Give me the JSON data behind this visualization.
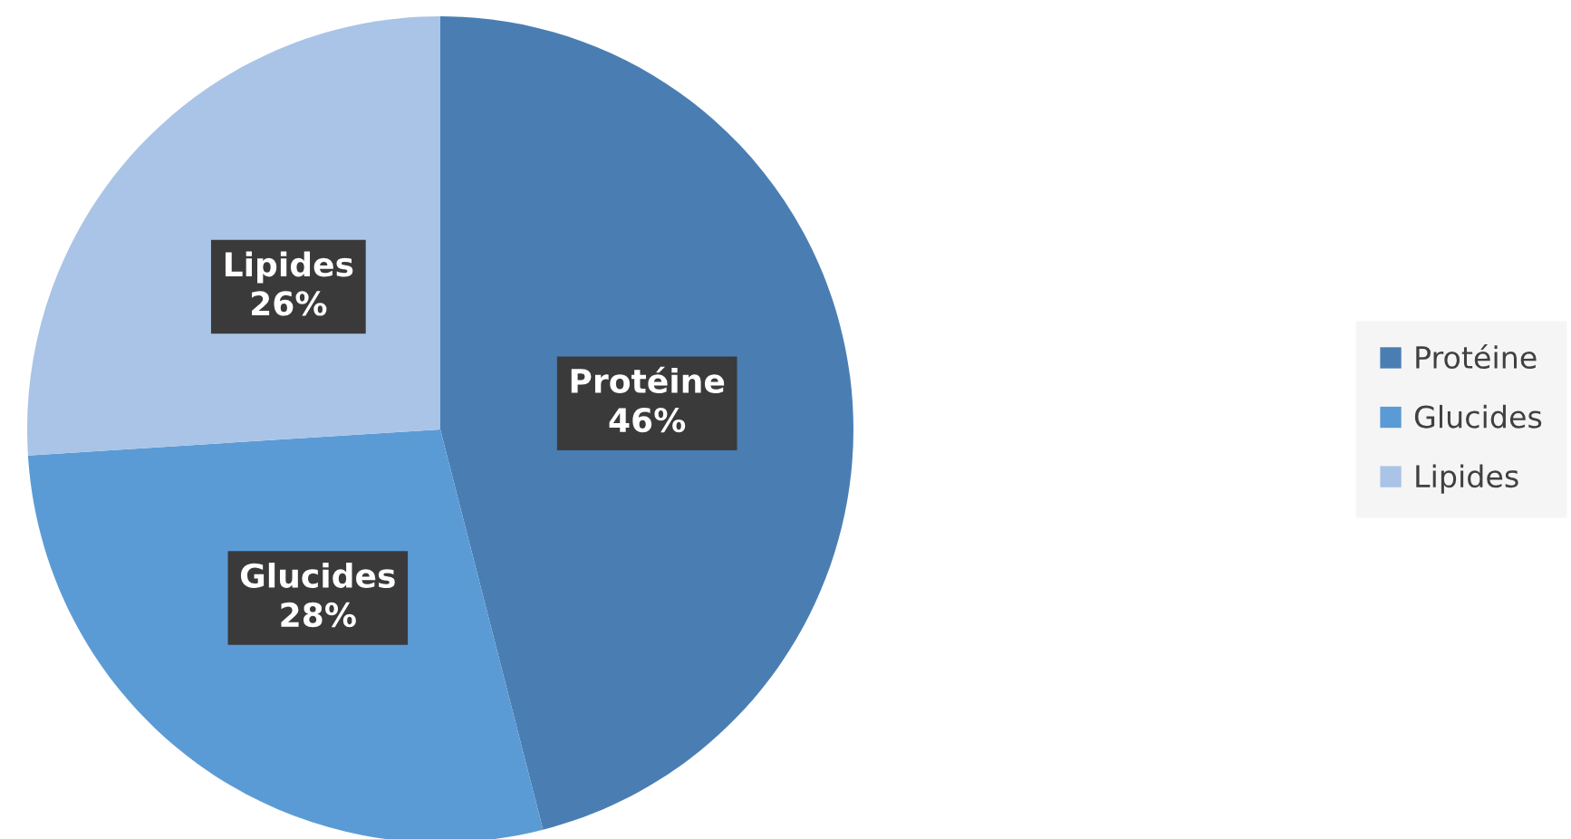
{
  "chart_data": {
    "type": "pie",
    "categories": [
      "Protéine",
      "Glucides",
      "Lipides"
    ],
    "values": [
      46,
      28,
      26
    ],
    "value_labels": [
      "46%",
      "28%",
      "26%"
    ],
    "colors": [
      "#4a7eb3",
      "#5b9bd5",
      "#a9c4e6"
    ],
    "legend": "right"
  }
}
